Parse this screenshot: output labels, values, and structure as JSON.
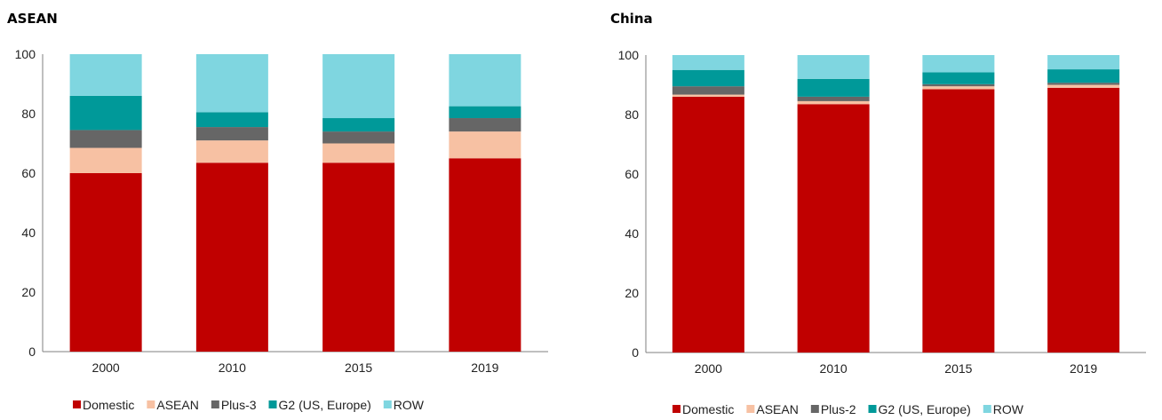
{
  "chart_data": [
    {
      "type": "bar",
      "stacked": true,
      "title": "ASEAN",
      "categories": [
        "2000",
        "2010",
        "2015",
        "2019"
      ],
      "ylim": [
        0,
        100
      ],
      "yticks": [
        "0",
        "20",
        "40",
        "60",
        "80",
        "100"
      ],
      "grid": false,
      "legend_position": "bottom",
      "series": [
        {
          "name": "Domestic",
          "color": "#c00000",
          "values": [
            60,
            63.5,
            63.5,
            65
          ]
        },
        {
          "name": "ASEAN",
          "color": "#f7c1a3",
          "values": [
            8.5,
            7.5,
            6.5,
            9
          ]
        },
        {
          "name": "Plus-3",
          "color": "#666666",
          "values": [
            6,
            4.5,
            4,
            4.5
          ]
        },
        {
          "name": "G2 (US, Europe)",
          "color": "#009999",
          "values": [
            11.5,
            5,
            4.5,
            4
          ]
        },
        {
          "name": "ROW",
          "color": "#7fd6e0",
          "values": [
            14,
            19.5,
            21.5,
            17.5
          ]
        }
      ]
    },
    {
      "type": "bar",
      "stacked": true,
      "title": "China",
      "categories": [
        "2000",
        "2010",
        "2015",
        "2019"
      ],
      "ylim": [
        0,
        100
      ],
      "yticks": [
        "0",
        "20",
        "40",
        "60",
        "80",
        "100"
      ],
      "grid": false,
      "legend_position": "bottom",
      "series": [
        {
          "name": "Domestic",
          "color": "#c00000",
          "values": [
            86,
            83.5,
            88.5,
            89
          ]
        },
        {
          "name": "ASEAN",
          "color": "#f7c1a3",
          "values": [
            0.7,
            1,
            1,
            1
          ]
        },
        {
          "name": "Plus-2",
          "color": "#666666",
          "values": [
            2.8,
            1.5,
            0.7,
            0.7
          ]
        },
        {
          "name": "G2 (US, Europe)",
          "color": "#009999",
          "values": [
            5.5,
            6,
            4,
            4.5
          ]
        },
        {
          "name": "ROW",
          "color": "#7fd6e0",
          "values": [
            5,
            8,
            5.8,
            4.8
          ]
        }
      ]
    }
  ]
}
